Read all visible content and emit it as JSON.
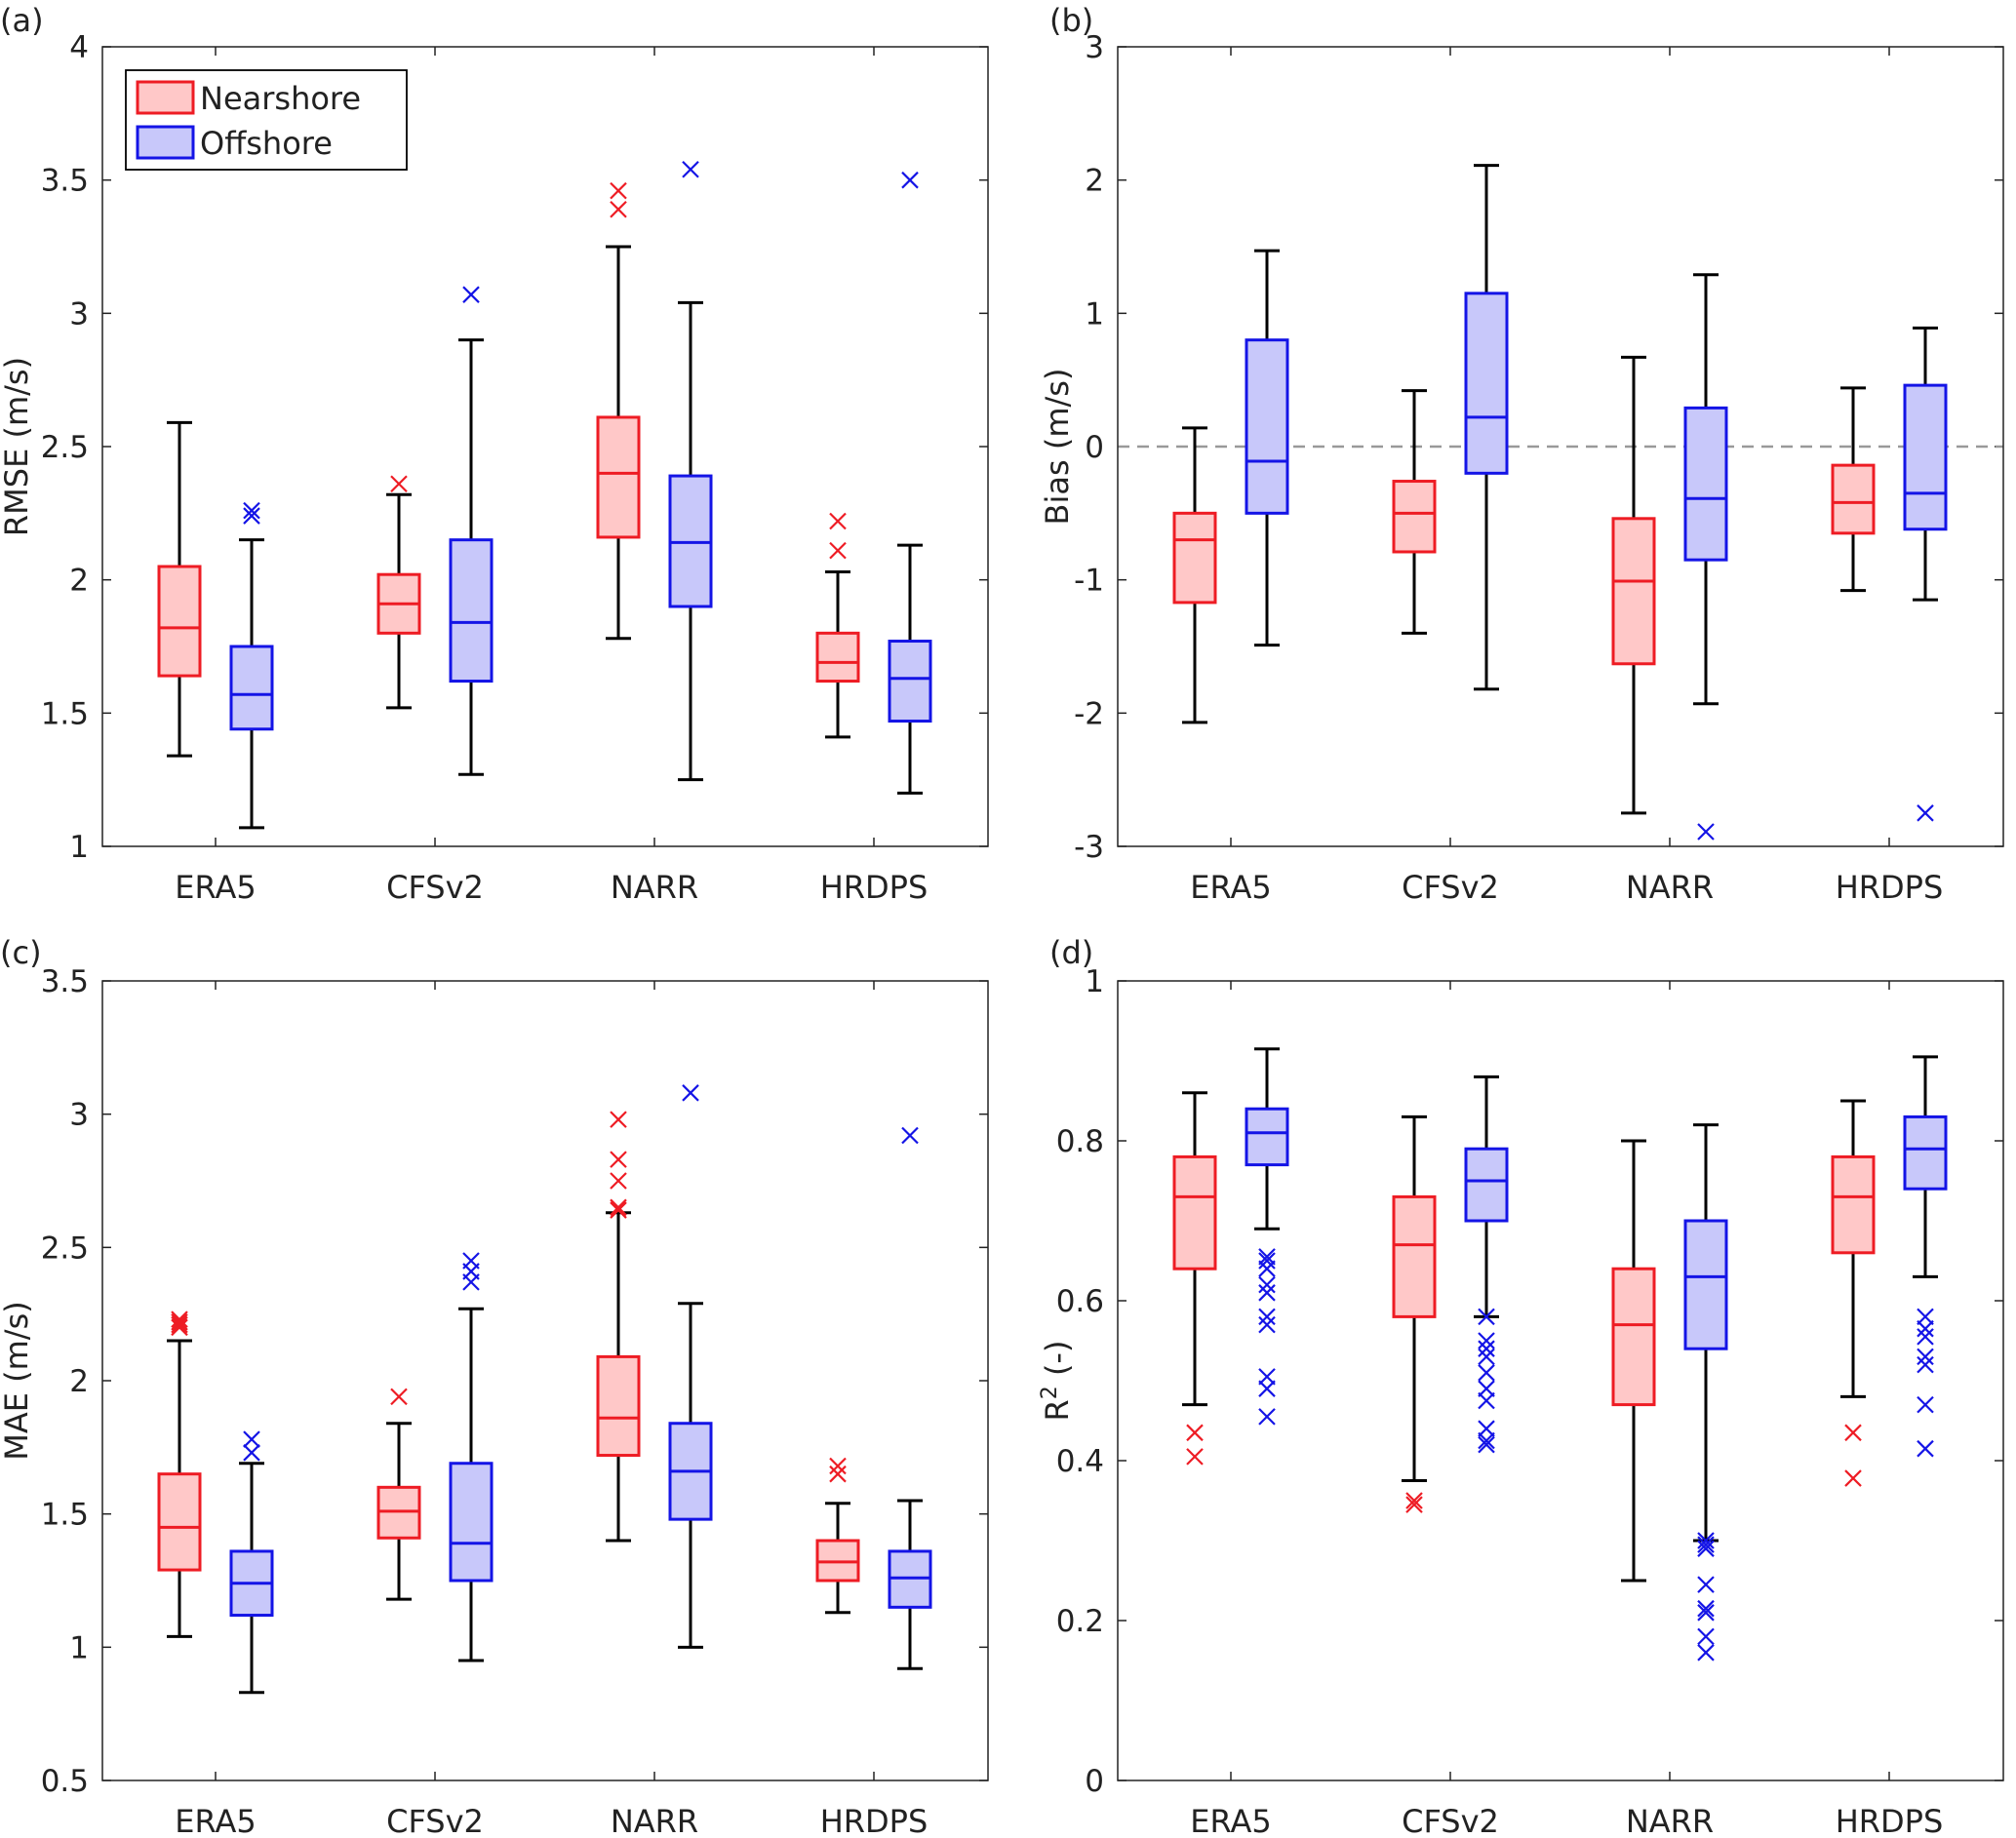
{
  "legend": {
    "nearshore_label": "Nearshore",
    "offshore_label": "Offshore"
  },
  "colors": {
    "nearshore_edge": "#ee1c24",
    "nearshore_fill": "#ffc8c8",
    "offshore_edge": "#1414e6",
    "offshore_fill": "#c8c8fa",
    "whisker": "#000000",
    "zero_line": "#999999"
  },
  "chart_data": [
    {
      "panel": "(a)",
      "type": "box",
      "ylabel": "RMSE (m/s)",
      "categories": [
        "ERA5",
        "CFSv2",
        "NARR",
        "HRDPS"
      ],
      "ylim": [
        1,
        4
      ],
      "yticks": [
        "1",
        "1.5",
        "2",
        "2.5",
        "3",
        "3.5",
        "4"
      ],
      "zero_line": false,
      "series": [
        {
          "name": "Nearshore",
          "boxes": [
            {
              "min": 1.34,
              "q1": 1.64,
              "median": 1.82,
              "q3": 2.05,
              "max": 2.59,
              "outliers": []
            },
            {
              "min": 1.52,
              "q1": 1.8,
              "median": 1.91,
              "q3": 2.02,
              "max": 2.32,
              "outliers": [
                2.36
              ]
            },
            {
              "min": 1.78,
              "q1": 2.16,
              "median": 2.4,
              "q3": 2.61,
              "max": 3.25,
              "outliers": [
                3.39,
                3.46
              ]
            },
            {
              "min": 1.41,
              "q1": 1.62,
              "median": 1.69,
              "q3": 1.8,
              "max": 2.03,
              "outliers": [
                2.11,
                2.22
              ]
            }
          ]
        },
        {
          "name": "Offshore",
          "boxes": [
            {
              "min": 1.07,
              "q1": 1.44,
              "median": 1.57,
              "q3": 1.75,
              "max": 2.15,
              "outliers": [
                2.24,
                2.26
              ]
            },
            {
              "min": 1.27,
              "q1": 1.62,
              "median": 1.84,
              "q3": 2.15,
              "max": 2.9,
              "outliers": [
                3.07
              ]
            },
            {
              "min": 1.25,
              "q1": 1.9,
              "median": 2.14,
              "q3": 2.39,
              "max": 3.04,
              "outliers": [
                3.54
              ]
            },
            {
              "min": 1.2,
              "q1": 1.47,
              "median": 1.63,
              "q3": 1.77,
              "max": 2.13,
              "outliers": [
                3.5
              ]
            }
          ]
        }
      ]
    },
    {
      "panel": "(b)",
      "type": "box",
      "ylabel": "Bias (m/s)",
      "categories": [
        "ERA5",
        "CFSv2",
        "NARR",
        "HRDPS"
      ],
      "ylim": [
        -3,
        3
      ],
      "yticks": [
        "-3",
        "-2",
        "-1",
        "0",
        "1",
        "2",
        "3"
      ],
      "zero_line": true,
      "series": [
        {
          "name": "Nearshore",
          "boxes": [
            {
              "min": -2.07,
              "q1": -1.17,
              "median": -0.7,
              "q3": -0.5,
              "max": 0.14,
              "outliers": []
            },
            {
              "min": -1.4,
              "q1": -0.79,
              "median": -0.5,
              "q3": -0.26,
              "max": 0.42,
              "outliers": []
            },
            {
              "min": -2.75,
              "q1": -1.63,
              "median": -1.01,
              "q3": -0.54,
              "max": 0.67,
              "outliers": []
            },
            {
              "min": -1.08,
              "q1": -0.65,
              "median": -0.42,
              "q3": -0.14,
              "max": 0.44,
              "outliers": []
            }
          ]
        },
        {
          "name": "Offshore",
          "boxes": [
            {
              "min": -1.49,
              "q1": -0.5,
              "median": -0.11,
              "q3": 0.8,
              "max": 1.47,
              "outliers": []
            },
            {
              "min": -1.82,
              "q1": -0.2,
              "median": 0.22,
              "q3": 1.15,
              "max": 2.11,
              "outliers": []
            },
            {
              "min": -1.93,
              "q1": -0.85,
              "median": -0.39,
              "q3": 0.29,
              "max": 1.29,
              "outliers": [
                -2.89
              ]
            },
            {
              "min": -1.15,
              "q1": -0.62,
              "median": -0.35,
              "q3": 0.46,
              "max": 0.89,
              "outliers": [
                -2.75
              ]
            }
          ]
        }
      ]
    },
    {
      "panel": "(c)",
      "type": "box",
      "ylabel": "MAE (m/s)",
      "categories": [
        "ERA5",
        "CFSv2",
        "NARR",
        "HRDPS"
      ],
      "ylim": [
        0.5,
        3.5
      ],
      "yticks": [
        "0.5",
        "1",
        "1.5",
        "2",
        "2.5",
        "3",
        "3.5"
      ],
      "zero_line": false,
      "series": [
        {
          "name": "Nearshore",
          "boxes": [
            {
              "min": 1.04,
              "q1": 1.29,
              "median": 1.45,
              "q3": 1.65,
              "max": 2.15,
              "outliers": [
                2.2,
                2.21,
                2.22,
                2.23
              ]
            },
            {
              "min": 1.18,
              "q1": 1.41,
              "median": 1.51,
              "q3": 1.6,
              "max": 1.84,
              "outliers": [
                1.94
              ]
            },
            {
              "min": 1.4,
              "q1": 1.72,
              "median": 1.86,
              "q3": 2.09,
              "max": 2.63,
              "outliers": [
                2.64,
                2.65,
                2.75,
                2.83,
                2.98
              ]
            },
            {
              "min": 1.13,
              "q1": 1.25,
              "median": 1.32,
              "q3": 1.4,
              "max": 1.54,
              "outliers": [
                1.65,
                1.68
              ]
            }
          ]
        },
        {
          "name": "Offshore",
          "boxes": [
            {
              "min": 0.83,
              "q1": 1.12,
              "median": 1.24,
              "q3": 1.36,
              "max": 1.69,
              "outliers": [
                1.73,
                1.78
              ]
            },
            {
              "min": 0.95,
              "q1": 1.25,
              "median": 1.39,
              "q3": 1.69,
              "max": 2.27,
              "outliers": [
                2.37,
                2.41,
                2.45
              ]
            },
            {
              "min": 1.0,
              "q1": 1.48,
              "median": 1.66,
              "q3": 1.84,
              "max": 2.29,
              "outliers": [
                3.08
              ]
            },
            {
              "min": 0.92,
              "q1": 1.15,
              "median": 1.26,
              "q3": 1.36,
              "max": 1.55,
              "outliers": [
                2.92
              ]
            }
          ]
        }
      ]
    },
    {
      "panel": "(d)",
      "type": "box",
      "ylabel": "R",
      "ylabel_sup": "2",
      "ylabel_suffix": " (-)",
      "categories": [
        "ERA5",
        "CFSv2",
        "NARR",
        "HRDPS"
      ],
      "ylim": [
        0,
        1
      ],
      "yticks": [
        "0",
        "0.2",
        "0.4",
        "0.6",
        "0.8",
        "1"
      ],
      "zero_line": false,
      "series": [
        {
          "name": "Nearshore",
          "boxes": [
            {
              "min": 0.47,
              "q1": 0.64,
              "median": 0.73,
              "q3": 0.78,
              "max": 0.86,
              "outliers": [
                0.405,
                0.435
              ]
            },
            {
              "min": 0.375,
              "q1": 0.58,
              "median": 0.67,
              "q3": 0.73,
              "max": 0.83,
              "outliers": [
                0.345,
                0.35
              ]
            },
            {
              "min": 0.25,
              "q1": 0.47,
              "median": 0.57,
              "q3": 0.64,
              "max": 0.8,
              "outliers": []
            },
            {
              "min": 0.48,
              "q1": 0.66,
              "median": 0.73,
              "q3": 0.78,
              "max": 0.85,
              "outliers": [
                0.378,
                0.435
              ]
            }
          ]
        },
        {
          "name": "Offshore",
          "boxes": [
            {
              "min": 0.69,
              "q1": 0.77,
              "median": 0.81,
              "q3": 0.84,
              "max": 0.915,
              "outliers": [
                0.455,
                0.49,
                0.505,
                0.57,
                0.58,
                0.61,
                0.62,
                0.64,
                0.65,
                0.655
              ]
            },
            {
              "min": 0.58,
              "q1": 0.7,
              "median": 0.75,
              "q3": 0.79,
              "max": 0.88,
              "outliers": [
                0.42,
                0.425,
                0.44,
                0.475,
                0.49,
                0.51,
                0.53,
                0.54,
                0.55,
                0.58
              ]
            },
            {
              "min": 0.3,
              "q1": 0.54,
              "median": 0.63,
              "q3": 0.7,
              "max": 0.82,
              "outliers": [
                0.16,
                0.18,
                0.21,
                0.215,
                0.245,
                0.29,
                0.295,
                0.3
              ]
            },
            {
              "min": 0.63,
              "q1": 0.74,
              "median": 0.79,
              "q3": 0.83,
              "max": 0.905,
              "outliers": [
                0.415,
                0.47,
                0.52,
                0.53,
                0.555,
                0.565,
                0.58
              ]
            }
          ]
        }
      ]
    }
  ]
}
